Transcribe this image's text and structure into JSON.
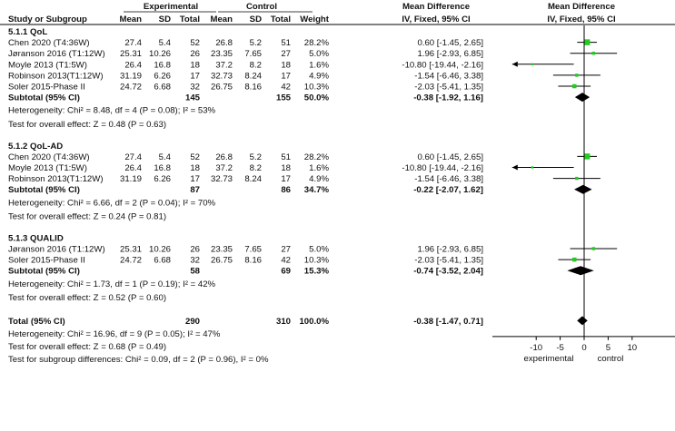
{
  "header": {
    "experimental": "Experimental",
    "control": "Control",
    "mean_difference_left": "Mean Difference",
    "mean_difference_right": "Mean Difference",
    "study": "Study or Subgroup",
    "mean": "Mean",
    "sd": "SD",
    "total": "Total",
    "weight": "Weight",
    "method_left": "IV, Fixed, 95% CI",
    "method_right": "IV, Fixed, 95% CI"
  },
  "colors": {
    "study_marker": "#22cc22",
    "line": "#000000",
    "text": "#111111"
  },
  "chart_data": {
    "type": "forest",
    "xlim": [
      -15,
      15
    ],
    "x_ticks": [
      -10,
      -5,
      0,
      5,
      10
    ],
    "x_labels": {
      "left": "experimental",
      "right": "control"
    },
    "subgroups": [
      {
        "name": "5.1.1 QoL",
        "studies": [
          {
            "name": "Chen 2020 (T4:36W)",
            "e_mean": "27.4",
            "e_sd": "5.4",
            "e_total": "52",
            "c_mean": "26.8",
            "c_sd": "5.2",
            "c_total": "51",
            "weight": "28.2%",
            "ci_text": "0.60 [-1.45, 2.65]",
            "md": 0.6,
            "lo": -1.45,
            "hi": 2.65,
            "w": 28.2
          },
          {
            "name": "Jøranson 2016 (T1:12W)",
            "e_mean": "25.31",
            "e_sd": "10.26",
            "e_total": "26",
            "c_mean": "23.35",
            "c_sd": "7.65",
            "c_total": "27",
            "weight": "5.0%",
            "ci_text": "1.96 [-2.93, 6.85]",
            "md": 1.96,
            "lo": -2.93,
            "hi": 6.85,
            "w": 5.0
          },
          {
            "name": "Moyle 2013 (T1:5W)",
            "e_mean": "26.4",
            "e_sd": "16.8",
            "e_total": "18",
            "c_mean": "37.2",
            "c_sd": "8.2",
            "c_total": "18",
            "weight": "1.6%",
            "ci_text": "-10.80 [-19.44, -2.16]",
            "md": -10.8,
            "lo": -19.44,
            "hi": -2.16,
            "w": 1.6
          },
          {
            "name": "Robinson 2013(T1:12W)",
            "e_mean": "31.19",
            "e_sd": "6.26",
            "e_total": "17",
            "c_mean": "32.73",
            "c_sd": "8.24",
            "c_total": "17",
            "weight": "4.9%",
            "ci_text": "-1.54 [-6.46, 3.38]",
            "md": -1.54,
            "lo": -6.46,
            "hi": 3.38,
            "w": 4.9
          },
          {
            "name": "Soler 2015-Phase II",
            "e_mean": "24.72",
            "e_sd": "6.68",
            "e_total": "32",
            "c_mean": "26.75",
            "c_sd": "8.16",
            "c_total": "42",
            "weight": "10.3%",
            "ci_text": "-2.03 [-5.41, 1.35]",
            "md": -2.03,
            "lo": -5.41,
            "hi": 1.35,
            "w": 10.3
          }
        ],
        "subtotal": {
          "label": "Subtotal (95% CI)",
          "e_total": "145",
          "c_total": "155",
          "weight": "50.0%",
          "ci_text": "-0.38 [-1.92, 1.16]",
          "md": -0.38,
          "lo": -1.92,
          "hi": 1.16
        },
        "heterogeneity": "Heterogeneity: Chi² = 8.48, df = 4 (P = 0.08); I² = 53%",
        "overall_effect": "Test for overall effect: Z = 0.48 (P = 0.63)"
      },
      {
        "name": "5.1.2 QoL-AD",
        "studies": [
          {
            "name": "Chen 2020 (T4:36W)",
            "e_mean": "27.4",
            "e_sd": "5.4",
            "e_total": "52",
            "c_mean": "26.8",
            "c_sd": "5.2",
            "c_total": "51",
            "weight": "28.2%",
            "ci_text": "0.60 [-1.45, 2.65]",
            "md": 0.6,
            "lo": -1.45,
            "hi": 2.65,
            "w": 28.2
          },
          {
            "name": "Moyle 2013 (T1:5W)",
            "e_mean": "26.4",
            "e_sd": "16.8",
            "e_total": "18",
            "c_mean": "37.2",
            "c_sd": "8.2",
            "c_total": "18",
            "weight": "1.6%",
            "ci_text": "-10.80 [-19.44, -2.16]",
            "md": -10.8,
            "lo": -19.44,
            "hi": -2.16,
            "w": 1.6
          },
          {
            "name": "Robinson 2013(T1:12W)",
            "e_mean": "31.19",
            "e_sd": "6.26",
            "e_total": "17",
            "c_mean": "32.73",
            "c_sd": "8.24",
            "c_total": "17",
            "weight": "4.9%",
            "ci_text": "-1.54 [-6.46, 3.38]",
            "md": -1.54,
            "lo": -6.46,
            "hi": 3.38,
            "w": 4.9
          }
        ],
        "subtotal": {
          "label": "Subtotal (95% CI)",
          "e_total": "87",
          "c_total": "86",
          "weight": "34.7%",
          "ci_text": "-0.22 [-2.07, 1.62]",
          "md": -0.22,
          "lo": -2.07,
          "hi": 1.62
        },
        "heterogeneity": "Heterogeneity: Chi² = 6.66, df = 2 (P = 0.04); I² = 70%",
        "overall_effect": "Test for overall effect: Z = 0.24 (P = 0.81)"
      },
      {
        "name": "5.1.3 QUALID",
        "studies": [
          {
            "name": "Jøranson 2016 (T1:12W)",
            "e_mean": "25.31",
            "e_sd": "10.26",
            "e_total": "26",
            "c_mean": "23.35",
            "c_sd": "7.65",
            "c_total": "27",
            "weight": "5.0%",
            "ci_text": "1.96 [-2.93, 6.85]",
            "md": 1.96,
            "lo": -2.93,
            "hi": 6.85,
            "w": 5.0
          },
          {
            "name": "Soler 2015-Phase II",
            "e_mean": "24.72",
            "e_sd": "6.68",
            "e_total": "32",
            "c_mean": "26.75",
            "c_sd": "8.16",
            "c_total": "42",
            "weight": "10.3%",
            "ci_text": "-2.03 [-5.41, 1.35]",
            "md": -2.03,
            "lo": -5.41,
            "hi": 1.35,
            "w": 10.3
          }
        ],
        "subtotal": {
          "label": "Subtotal (95% CI)",
          "e_total": "58",
          "c_total": "69",
          "weight": "15.3%",
          "ci_text": "-0.74 [-3.52, 2.04]",
          "md": -0.74,
          "lo": -3.52,
          "hi": 2.04
        },
        "heterogeneity": "Heterogeneity: Chi² = 1.73, df = 1 (P = 0.19); I² = 42%",
        "overall_effect": "Test for overall effect: Z = 0.52 (P = 0.60)"
      }
    ],
    "total": {
      "label": "Total (95% CI)",
      "e_total": "290",
      "c_total": "310",
      "weight": "100.0%",
      "ci_text": "-0.38 [-1.47, 0.71]",
      "md": -0.38,
      "lo": -1.47,
      "hi": 0.71,
      "heterogeneity": "Heterogeneity: Chi² = 16.96, df = 9 (P = 0.05); I² = 47%",
      "overall_effect": "Test for overall effect: Z = 0.68 (P = 0.49)",
      "subgroup_diff": "Test for subgroup differences: Chi² = 0.09, df = 2 (P = 0.96), I² = 0%"
    }
  }
}
